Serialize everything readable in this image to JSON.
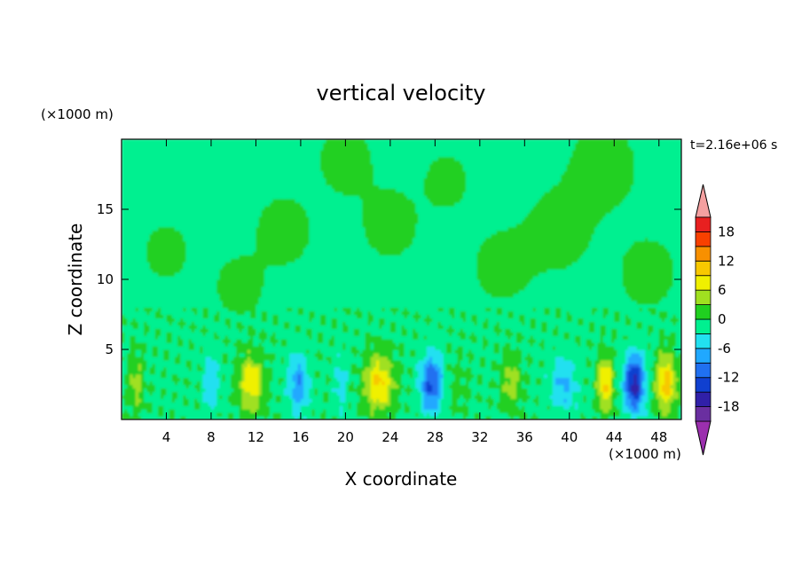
{
  "chart_data": {
    "type": "heatmap",
    "title": "vertical velocity",
    "xlabel": "X coordinate",
    "ylabel": "Z coordinate",
    "x_unit": "(×1000 m)",
    "y_unit": "(×1000 m)",
    "time_label": "t=2.16e+06 s",
    "xlim": [
      0,
      50
    ],
    "ylim": [
      0,
      20
    ],
    "x_ticks": [
      4,
      8,
      12,
      16,
      20,
      24,
      28,
      32,
      36,
      40,
      44,
      48
    ],
    "y_ticks": [
      5,
      10,
      15
    ],
    "colorbar": {
      "levels": [
        -21,
        -18,
        -15,
        -12,
        -9,
        -6,
        -3,
        0,
        3,
        6,
        9,
        12,
        15,
        18,
        21
      ],
      "tick_values": [
        18,
        12,
        6,
        0,
        -6,
        -12,
        -18
      ],
      "colors": [
        "#9b2fae",
        "#6a2fa0",
        "#3020a8",
        "#1040d0",
        "#2070f0",
        "#20a8ff",
        "#22e0f0",
        "#00f090",
        "#20d020",
        "#a0e020",
        "#f0f000",
        "#f8c800",
        "#f89000",
        "#f84000",
        "#e82020",
        "#f4a0a0"
      ],
      "extend": "both"
    },
    "grid": false,
    "field_description": "updraft cores (positive) and downdraft cores (negative) near the surface below z=6"
  }
}
